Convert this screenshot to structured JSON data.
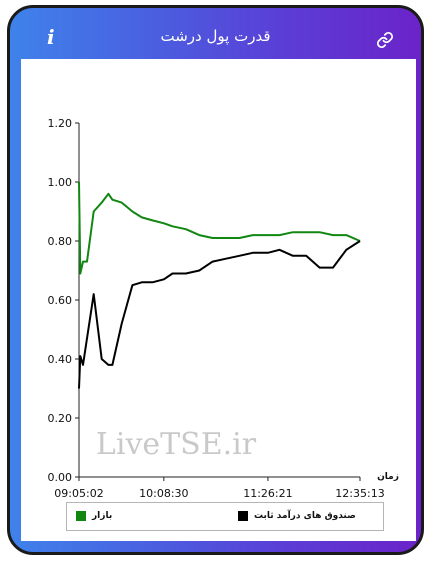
{
  "header": {
    "title": "قدرت پول درشت",
    "info_glyph": "i",
    "link_icon": "link-icon"
  },
  "watermark": "LiveTSE.ir",
  "colors": {
    "market": "#118711",
    "fixed_income": "#000000"
  },
  "chart_data": {
    "type": "line",
    "xlabel": "زمان",
    "ylabel": "",
    "ylim": [
      0,
      1.2
    ],
    "y_ticks": [
      "0.00",
      "0.20",
      "0.40",
      "0.60",
      "0.80",
      "1.00",
      "1.20"
    ],
    "x_ticks": [
      "09:05:02",
      "10:08:30",
      "11:26:21",
      "12:35:13"
    ],
    "x": [
      "09:05:02",
      "09:06:00",
      "09:08:00",
      "09:11:00",
      "09:16:00",
      "09:22:00",
      "09:27:00",
      "09:30:00",
      "09:37:00",
      "09:45:00",
      "09:52:00",
      "10:00:00",
      "10:08:30",
      "10:15:00",
      "10:25:00",
      "10:35:00",
      "10:45:00",
      "10:55:00",
      "11:05:00",
      "11:15:00",
      "11:26:21",
      "11:35:00",
      "11:45:00",
      "11:55:00",
      "12:05:00",
      "12:15:00",
      "12:25:00",
      "12:35:13"
    ],
    "series": [
      {
        "name": "بازار",
        "color": "#118711",
        "values": [
          1.0,
          0.69,
          0.73,
          0.73,
          0.9,
          0.93,
          0.96,
          0.94,
          0.93,
          0.9,
          0.88,
          0.87,
          0.86,
          0.85,
          0.84,
          0.82,
          0.81,
          0.81,
          0.81,
          0.82,
          0.82,
          0.82,
          0.83,
          0.83,
          0.83,
          0.82,
          0.82,
          0.8
        ]
      },
      {
        "name": "صندوق های درآمد ثابت",
        "color": "#000000",
        "values": [
          0.3,
          0.41,
          0.38,
          0.47,
          0.62,
          0.4,
          0.38,
          0.38,
          0.52,
          0.65,
          0.66,
          0.66,
          0.67,
          0.69,
          0.69,
          0.7,
          0.73,
          0.74,
          0.75,
          0.76,
          0.76,
          0.77,
          0.75,
          0.75,
          0.71,
          0.71,
          0.77,
          0.8
        ]
      }
    ],
    "legend_position": "bottom",
    "grid": false
  }
}
